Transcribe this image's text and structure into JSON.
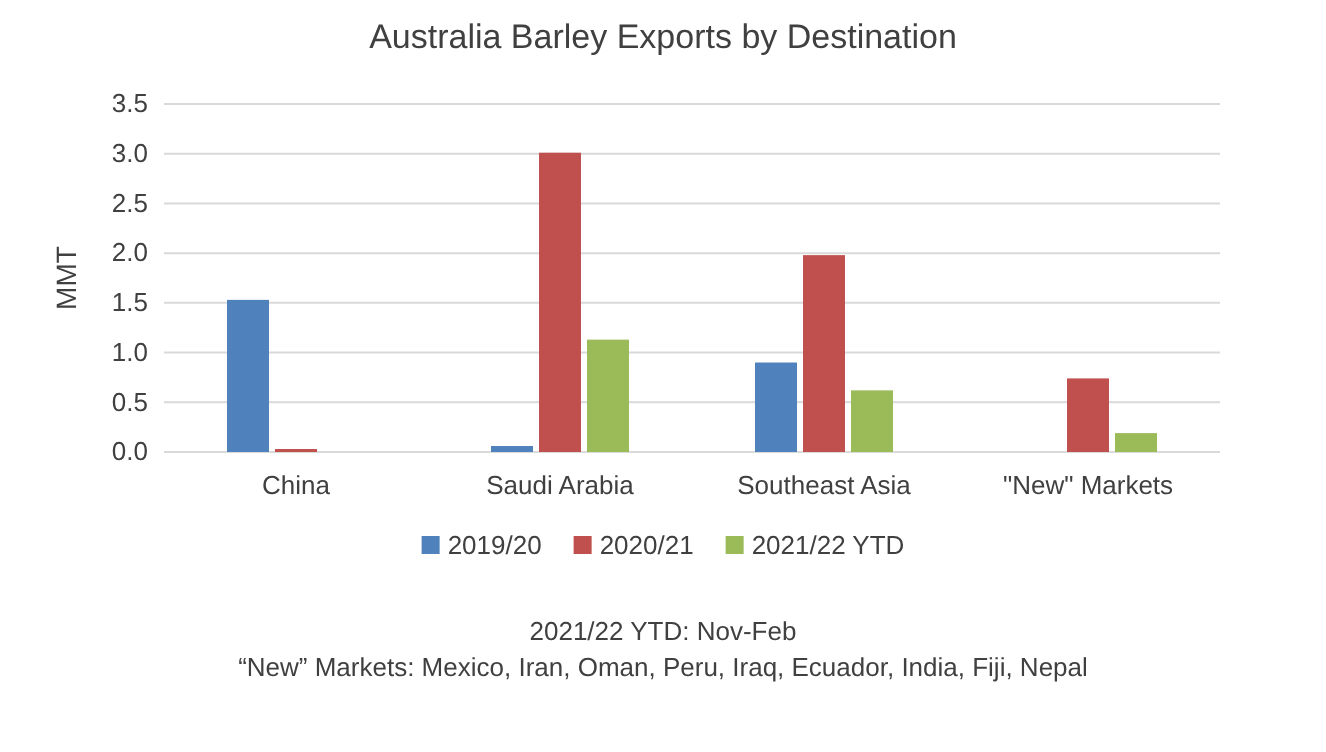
{
  "chart_data": {
    "type": "bar",
    "title": "Australia Barley Exports by Destination",
    "ylabel": "MMT",
    "categories": [
      "China",
      "Saudi Arabia",
      "Southeast Asia",
      "\"New\" Markets"
    ],
    "series": [
      {
        "name": "2019/20",
        "color": "#4f81bd",
        "values": [
          1.53,
          0.06,
          0.9,
          null
        ]
      },
      {
        "name": "2020/21",
        "color": "#c0504d",
        "values": [
          0.03,
          3.01,
          1.98,
          0.74
        ]
      },
      {
        "name": "2021/22 YTD",
        "color": "#9bbb59",
        "values": [
          null,
          1.13,
          0.62,
          0.19
        ]
      }
    ],
    "ylim": [
      0,
      3.5
    ],
    "yticks": [
      {
        "value": 0,
        "label": "0.0"
      },
      {
        "value": 0.5,
        "label": "0.5"
      },
      {
        "value": 1,
        "label": "1.0"
      },
      {
        "value": 1.5,
        "label": "1.5"
      },
      {
        "value": 2,
        "label": "2.0"
      },
      {
        "value": 2.5,
        "label": "2.5"
      },
      {
        "value": 3,
        "label": "3.0"
      },
      {
        "value": 3.5,
        "label": "3.5"
      }
    ],
    "grid": "y",
    "legend": "bottom",
    "annotations": [
      "2021/22 YTD: Nov-Feb",
      "“New” Markets: Mexico, Iran, Oman, Peru, Iraq, Ecuador, India, Fiji, Nepal"
    ]
  }
}
